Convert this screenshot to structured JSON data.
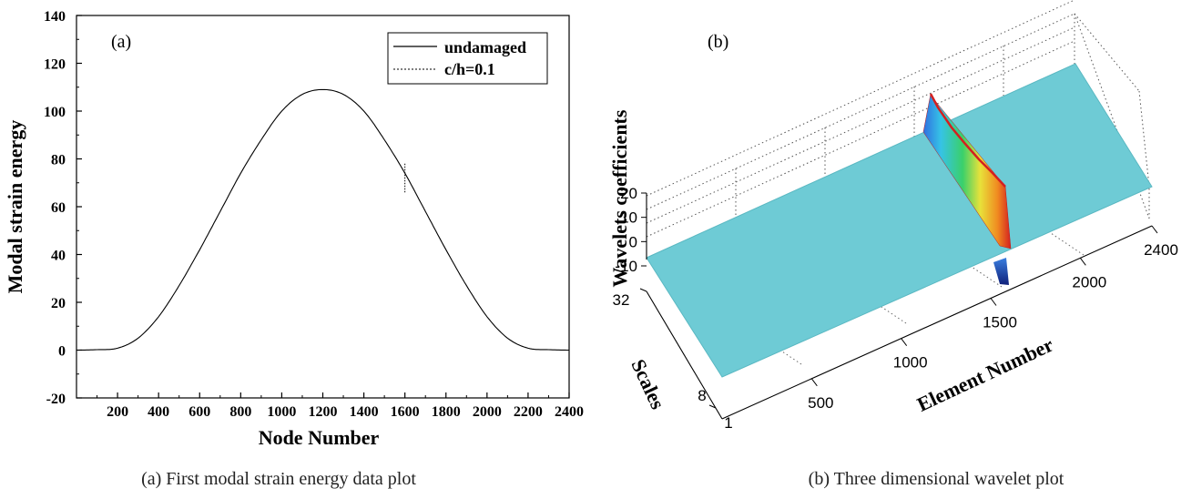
{
  "chart_data": [
    {
      "type": "line",
      "panel_label": "(a)",
      "caption": "(a) First modal strain energy data plot",
      "xlabel": "Node Number",
      "ylabel": "Modal strain energy",
      "xlim": [
        0,
        2400
      ],
      "ylim": [
        -20,
        140
      ],
      "x_ticks": [
        200,
        400,
        600,
        800,
        1000,
        1200,
        1400,
        1600,
        1800,
        2000,
        2200,
        2400
      ],
      "y_ticks": [
        -20,
        0,
        20,
        40,
        60,
        80,
        100,
        120,
        140
      ],
      "legend_position": "top-right",
      "series": [
        {
          "name": "undamaged",
          "style": "solid",
          "x": [
            0,
            100,
            200,
            300,
            400,
            500,
            600,
            700,
            800,
            900,
            1000,
            1100,
            1200,
            1300,
            1400,
            1500,
            1600,
            1700,
            1800,
            1900,
            2000,
            2100,
            2200,
            2300,
            2400
          ],
          "values": [
            0,
            0.2,
            0.8,
            5,
            14,
            27,
            42,
            58,
            74,
            88,
            100,
            107,
            109,
            107,
            100,
            88,
            74,
            58,
            42,
            27,
            14,
            5,
            0.8,
            0.2,
            0
          ]
        },
        {
          "name": "c/h=0.1",
          "style": "dotted",
          "x": [
            1595,
            1600,
            1605
          ],
          "values": [
            71,
            76,
            71
          ]
        }
      ]
    },
    {
      "type": "surface3d",
      "panel_label": "(b)",
      "caption": "(b) Three dimensional wavelet plot",
      "xlabel": "Element Number",
      "ylabel": "Scales",
      "zlabel": "Wavelets coefficients",
      "x_ticks": [
        500,
        1000,
        1500,
        2000,
        2400
      ],
      "y_ticks": [
        1,
        8,
        32
      ],
      "z_ticks": [
        -10,
        0,
        10,
        20
      ],
      "xlim": [
        0,
        2400
      ],
      "ylim": [
        1,
        32
      ],
      "zlim": [
        -10,
        20
      ],
      "grid": true,
      "surface_color": "#6ecbd5",
      "peak_location": 1600,
      "peak_value": 20,
      "trough_value": -10
    }
  ]
}
